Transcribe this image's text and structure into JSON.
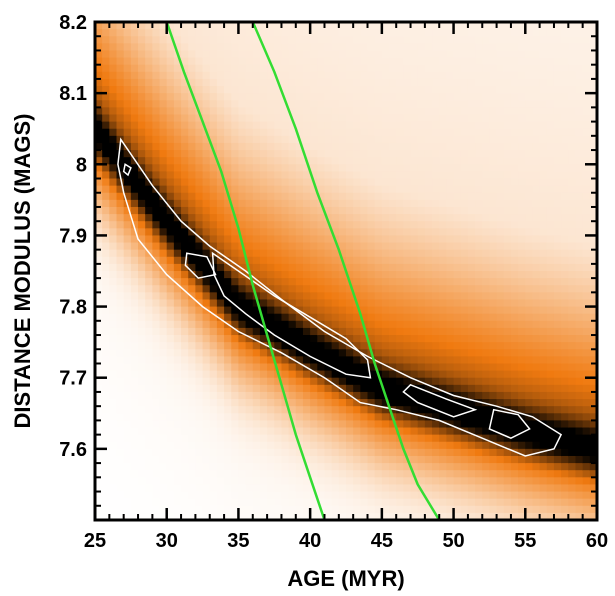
{
  "chart_data": {
    "type": "heatmap",
    "title": "",
    "xlabel": "AGE (MYR)",
    "ylabel": "DISTANCE MODULUS (MAGS)",
    "xlim": [
      25,
      60
    ],
    "ylim": [
      7.5,
      8.2
    ],
    "x_ticks": [
      25,
      30,
      35,
      40,
      45,
      50,
      55,
      60
    ],
    "x_tick_labels": [
      "25",
      "30",
      "35",
      "40",
      "45",
      "50",
      "55",
      "60"
    ],
    "y_ticks": [
      7.6,
      7.7,
      7.8,
      7.9,
      8.0,
      8.1,
      8.2
    ],
    "y_tick_labels": [
      "7.6",
      "7.7",
      "7.8",
      "7.9",
      "8",
      "8.1",
      "8.2"
    ],
    "grid": false,
    "colors": {
      "low": "#ffffff",
      "mid": "#f07a10",
      "high": "#000000",
      "contour": "#ffffff",
      "isochrone": "#33dd33"
    },
    "likelihood_ridge": {
      "x": [
        26.5,
        30,
        35,
        40,
        45,
        50,
        55,
        58
      ],
      "y": [
        8.01,
        7.92,
        7.8,
        7.74,
        7.685,
        7.655,
        7.625,
        7.61
      ],
      "description_values_width_mag": 0.05
    },
    "contours": [
      {
        "name": "outer",
        "points": [
          [
            26.8,
            8.035
          ],
          [
            29,
            7.97
          ],
          [
            31,
            7.92
          ],
          [
            33,
            7.885
          ],
          [
            35.5,
            7.85
          ],
          [
            38,
            7.81
          ],
          [
            41,
            7.765
          ],
          [
            44,
            7.73
          ],
          [
            47,
            7.7
          ],
          [
            50,
            7.675
          ],
          [
            53,
            7.66
          ],
          [
            55.5,
            7.645
          ],
          [
            57.5,
            7.62
          ],
          [
            57,
            7.6
          ],
          [
            55,
            7.59
          ],
          [
            52,
            7.615
          ],
          [
            49,
            7.64
          ],
          [
            46,
            7.655
          ],
          [
            43.5,
            7.665
          ],
          [
            41,
            7.7
          ],
          [
            38,
            7.735
          ],
          [
            35,
            7.765
          ],
          [
            32.5,
            7.8
          ],
          [
            30,
            7.845
          ],
          [
            28,
            7.895
          ],
          [
            27,
            7.96
          ],
          [
            26.6,
            8.0
          ]
        ]
      },
      {
        "name": "inner",
        "points": [
          [
            33.2,
            7.875
          ],
          [
            35,
            7.85
          ],
          [
            37.5,
            7.815
          ],
          [
            40,
            7.785
          ],
          [
            42.5,
            7.755
          ],
          [
            44,
            7.725
          ],
          [
            44.2,
            7.7
          ],
          [
            42.5,
            7.705
          ],
          [
            40,
            7.73
          ],
          [
            37.5,
            7.76
          ],
          [
            35.5,
            7.79
          ],
          [
            34,
            7.815
          ],
          [
            33.3,
            7.845
          ]
        ]
      },
      {
        "name": "inner-2",
        "points": [
          [
            47,
            7.69
          ],
          [
            49.5,
            7.67
          ],
          [
            51.5,
            7.655
          ],
          [
            50,
            7.645
          ],
          [
            47.5,
            7.665
          ],
          [
            46.5,
            7.68
          ]
        ]
      },
      {
        "name": "inner-3",
        "points": [
          [
            52.8,
            7.655
          ],
          [
            54.5,
            7.648
          ],
          [
            55.3,
            7.628
          ],
          [
            54,
            7.615
          ],
          [
            52.5,
            7.628
          ]
        ]
      },
      {
        "name": "inner-4",
        "points": [
          [
            31.4,
            7.875
          ],
          [
            32.8,
            7.87
          ],
          [
            33.4,
            7.845
          ],
          [
            32.2,
            7.84
          ],
          [
            31.3,
            7.858
          ]
        ]
      },
      {
        "name": "small-1",
        "points": [
          [
            27.1,
            8.0
          ],
          [
            27.5,
            7.995
          ],
          [
            27.3,
            7.985
          ],
          [
            27.0,
            7.99
          ]
        ]
      }
    ],
    "isochrones": [
      {
        "name": "",
        "x": [
          30.0,
          31.2,
          32.5,
          33.8,
          35.0,
          36.0,
          37.0,
          38.0,
          39.0,
          40.0,
          41.0
        ],
        "y": [
          8.2,
          8.13,
          8.06,
          7.99,
          7.91,
          7.83,
          7.76,
          7.69,
          7.62,
          7.56,
          7.5
        ]
      },
      {
        "name": "",
        "x": [
          36.0,
          37.5,
          39.0,
          40.5,
          42.0,
          43.5,
          44.5,
          45.5,
          46.5,
          47.5,
          49.0
        ],
        "y": [
          8.2,
          8.13,
          8.05,
          7.96,
          7.88,
          7.79,
          7.72,
          7.66,
          7.6,
          7.55,
          7.5
        ]
      }
    ]
  }
}
